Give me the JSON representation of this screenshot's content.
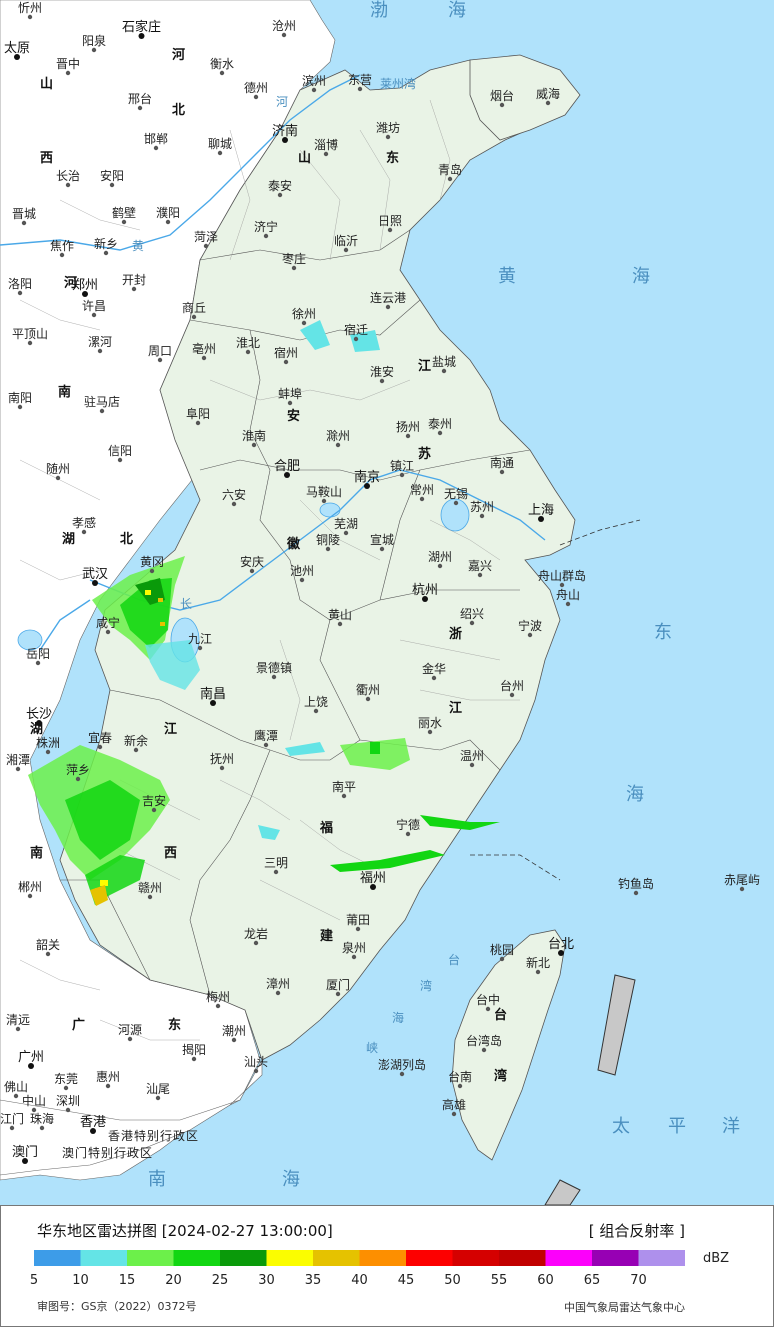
{
  "map": {
    "colors": {
      "sea": "#b0e2fb",
      "land_in": "#e9f3e6",
      "land_out": "#ffffff",
      "border": "#555555",
      "river": "#4aa8e8"
    },
    "provinces": [
      {
        "id": "shandong-1",
        "text": "山"
      },
      {
        "id": "shandong-2",
        "text": "东"
      },
      {
        "id": "jiangsu-1",
        "text": "江"
      },
      {
        "id": "jiangsu-2",
        "text": "苏"
      },
      {
        "id": "anhui-1",
        "text": "安"
      },
      {
        "id": "anhui-2",
        "text": "徽"
      },
      {
        "id": "zhejiang-1",
        "text": "浙"
      },
      {
        "id": "zhejiang-2",
        "text": "江"
      },
      {
        "id": "jiangxi-1",
        "text": "江"
      },
      {
        "id": "jiangxi-2",
        "text": "西"
      },
      {
        "id": "fujian-1",
        "text": "福"
      },
      {
        "id": "fujian-2",
        "text": "建"
      },
      {
        "id": "taiwan-1",
        "text": "台"
      },
      {
        "id": "taiwan-2",
        "text": "湾"
      },
      {
        "id": "hebei-1",
        "text": "河"
      },
      {
        "id": "hebei-2",
        "text": "北"
      },
      {
        "id": "shanxi-1",
        "text": "山"
      },
      {
        "id": "shanxi-2",
        "text": "西"
      },
      {
        "id": "henan-1",
        "text": "河"
      },
      {
        "id": "henan-2",
        "text": "南"
      },
      {
        "id": "hubei-1",
        "text": "湖"
      },
      {
        "id": "hubei-2",
        "text": "北"
      },
      {
        "id": "hunan-1",
        "text": "湖"
      },
      {
        "id": "hunan-2",
        "text": "南"
      },
      {
        "id": "guangdong-1",
        "text": "广"
      },
      {
        "id": "guangdong-2",
        "text": "东"
      }
    ],
    "seas": [
      {
        "id": "bohai-1",
        "text": "渤"
      },
      {
        "id": "bohai-2",
        "text": "海"
      },
      {
        "id": "laizhou",
        "text": "莱州湾"
      },
      {
        "id": "huanghai-1",
        "text": "黄"
      },
      {
        "id": "huanghai-2",
        "text": "海"
      },
      {
        "id": "donghai-1",
        "text": "东"
      },
      {
        "id": "donghai-2",
        "text": "海"
      },
      {
        "id": "nanhai-1",
        "text": "南"
      },
      {
        "id": "nanhai-2",
        "text": "海"
      },
      {
        "id": "taiping-1",
        "text": "太"
      },
      {
        "id": "taiping-2",
        "text": "平"
      },
      {
        "id": "taiping-3",
        "text": "洋"
      },
      {
        "id": "huanghe-1",
        "text": "河"
      },
      {
        "id": "huanghe-2",
        "text": "黄"
      },
      {
        "id": "changjiang",
        "text": "长"
      },
      {
        "id": "strait-1",
        "text": "台"
      },
      {
        "id": "strait-2",
        "text": "湾"
      },
      {
        "id": "strait-3",
        "text": "海"
      },
      {
        "id": "strait-4",
        "text": "峡"
      }
    ],
    "capitals": [
      {
        "id": "taiyuan",
        "text": "太原"
      },
      {
        "id": "shijiazhuang",
        "text": "石家庄"
      },
      {
        "id": "jinan",
        "text": "济南"
      },
      {
        "id": "zhengzhou",
        "text": "郑州"
      },
      {
        "id": "hefei",
        "text": "合肥"
      },
      {
        "id": "nanjing",
        "text": "南京"
      },
      {
        "id": "shanghai",
        "text": "上海"
      },
      {
        "id": "hangzhou",
        "text": "杭州"
      },
      {
        "id": "wuhan",
        "text": "武汉"
      },
      {
        "id": "nanchang",
        "text": "南昌"
      },
      {
        "id": "changsha",
        "text": "长沙"
      },
      {
        "id": "fuzhou",
        "text": "福州"
      },
      {
        "id": "taibei",
        "text": "台北"
      },
      {
        "id": "guangzhou",
        "text": "广州"
      },
      {
        "id": "xianggang",
        "text": "香港"
      },
      {
        "id": "aomen",
        "text": "澳门"
      }
    ],
    "cities": [
      {
        "id": "xinzhou",
        "text": "忻州"
      },
      {
        "id": "cangzhou",
        "text": "沧州"
      },
      {
        "id": "yangquan",
        "text": "阳泉"
      },
      {
        "id": "jinzhong",
        "text": "晋中"
      },
      {
        "id": "hengshui",
        "text": "衡水"
      },
      {
        "id": "dezhou",
        "text": "德州"
      },
      {
        "id": "binzhou",
        "text": "滨州"
      },
      {
        "id": "dongying",
        "text": "东营"
      },
      {
        "id": "yantai",
        "text": "烟台"
      },
      {
        "id": "weihai",
        "text": "威海"
      },
      {
        "id": "xingtai",
        "text": "邢台"
      },
      {
        "id": "zibo",
        "text": "淄博"
      },
      {
        "id": "weifang",
        "text": "潍坊"
      },
      {
        "id": "handan",
        "text": "邯郸"
      },
      {
        "id": "liaocheng",
        "text": "聊城"
      },
      {
        "id": "qingdao",
        "text": "青岛"
      },
      {
        "id": "changzhi",
        "text": "长治"
      },
      {
        "id": "anyang",
        "text": "安阳"
      },
      {
        "id": "taian",
        "text": "泰安"
      },
      {
        "id": "jincheng",
        "text": "晋城"
      },
      {
        "id": "hebi",
        "text": "鹤壁"
      },
      {
        "id": "puyang",
        "text": "濮阳"
      },
      {
        "id": "rizhao",
        "text": "日照"
      },
      {
        "id": "jining",
        "text": "济宁"
      },
      {
        "id": "heze",
        "text": "菏泽"
      },
      {
        "id": "linyi",
        "text": "临沂"
      },
      {
        "id": "jiaozuo",
        "text": "焦作"
      },
      {
        "id": "xinxiang",
        "text": "新乡"
      },
      {
        "id": "zaozhuang",
        "text": "枣庄"
      },
      {
        "id": "kaifeng",
        "text": "开封"
      },
      {
        "id": "luoyang",
        "text": "洛阳"
      },
      {
        "id": "lianyungang",
        "text": "连云港"
      },
      {
        "id": "xuchang",
        "text": "许昌"
      },
      {
        "id": "shangqiu",
        "text": "商丘"
      },
      {
        "id": "xuzhou",
        "text": "徐州"
      },
      {
        "id": "suqian",
        "text": "宿迁"
      },
      {
        "id": "pingdingshan",
        "text": "平顶山"
      },
      {
        "id": "luohe",
        "text": "漯河"
      },
      {
        "id": "zhoukou",
        "text": "周口"
      },
      {
        "id": "bozhou",
        "text": "亳州"
      },
      {
        "id": "huaibei",
        "text": "淮北"
      },
      {
        "id": "suzhou-ah",
        "text": "宿州"
      },
      {
        "id": "yancheng",
        "text": "盐城"
      },
      {
        "id": "huaian",
        "text": "淮安"
      },
      {
        "id": "nanyang",
        "text": "南阳"
      },
      {
        "id": "zhumadian",
        "text": "驻马店"
      },
      {
        "id": "bengbu",
        "text": "蚌埠"
      },
      {
        "id": "fuyang",
        "text": "阜阳"
      },
      {
        "id": "yangzhou",
        "text": "扬州"
      },
      {
        "id": "taizhou-js",
        "text": "泰州"
      },
      {
        "id": "huainan",
        "text": "淮南"
      },
      {
        "id": "chuzhou",
        "text": "滁州"
      },
      {
        "id": "xinyang",
        "text": "信阳"
      },
      {
        "id": "nantong",
        "text": "南通"
      },
      {
        "id": "zhenjiang",
        "text": "镇江"
      },
      {
        "id": "suizhou",
        "text": "随州"
      },
      {
        "id": "maanshan",
        "text": "马鞍山"
      },
      {
        "id": "changzhou",
        "text": "常州"
      },
      {
        "id": "wuxi",
        "text": "无锡"
      },
      {
        "id": "luan",
        "text": "六安"
      },
      {
        "id": "suzhou-js",
        "text": "苏州"
      },
      {
        "id": "xiaogan",
        "text": "孝感"
      },
      {
        "id": "wuhu",
        "text": "芜湖"
      },
      {
        "id": "tongling",
        "text": "铜陵"
      },
      {
        "id": "xuancheng",
        "text": "宣城"
      },
      {
        "id": "huanggang",
        "text": "黄冈"
      },
      {
        "id": "huzhou",
        "text": "湖州"
      },
      {
        "id": "anqing",
        "text": "安庆"
      },
      {
        "id": "chizhou",
        "text": "池州"
      },
      {
        "id": "jiaxing",
        "text": "嘉兴"
      },
      {
        "id": "zhoushan-qd",
        "text": "舟山群岛"
      },
      {
        "id": "zhoushan",
        "text": "舟山"
      },
      {
        "id": "shaoxing",
        "text": "绍兴"
      },
      {
        "id": "huangshan",
        "text": "黄山"
      },
      {
        "id": "xianning",
        "text": "咸宁"
      },
      {
        "id": "jiujiang",
        "text": "九江"
      },
      {
        "id": "ningbo",
        "text": "宁波"
      },
      {
        "id": "yueyang",
        "text": "岳阳"
      },
      {
        "id": "jingdezhen",
        "text": "景德镇"
      },
      {
        "id": "jinhua",
        "text": "金华"
      },
      {
        "id": "quzhou",
        "text": "衢州"
      },
      {
        "id": "taizhou-zj",
        "text": "台州"
      },
      {
        "id": "shangrao",
        "text": "上饶"
      },
      {
        "id": "lishui",
        "text": "丽水"
      },
      {
        "id": "yichun",
        "text": "宜春"
      },
      {
        "id": "xinyu",
        "text": "新余"
      },
      {
        "id": "yingtan",
        "text": "鹰潭"
      },
      {
        "id": "zhuzhou",
        "text": "株洲"
      },
      {
        "id": "xiangtan",
        "text": "湘潭"
      },
      {
        "id": "wenzhou",
        "text": "温州"
      },
      {
        "id": "pingxiang",
        "text": "萍乡"
      },
      {
        "id": "fuzhou-jx",
        "text": "抚州"
      },
      {
        "id": "nanping",
        "text": "南平"
      },
      {
        "id": "jian",
        "text": "吉安"
      },
      {
        "id": "ningde",
        "text": "宁德"
      },
      {
        "id": "sanming",
        "text": "三明"
      },
      {
        "id": "chenzhou",
        "text": "郴州"
      },
      {
        "id": "ganzhou",
        "text": "赣州"
      },
      {
        "id": "diaoyu",
        "text": "钓鱼岛"
      },
      {
        "id": "chiwei",
        "text": "赤尾屿"
      },
      {
        "id": "putian",
        "text": "莆田"
      },
      {
        "id": "longyan",
        "text": "龙岩"
      },
      {
        "id": "shaoguan",
        "text": "韶关"
      },
      {
        "id": "quanzhou",
        "text": "泉州"
      },
      {
        "id": "taoyuan",
        "text": "桃园"
      },
      {
        "id": "xinbei",
        "text": "新北"
      },
      {
        "id": "zhangzhou",
        "text": "漳州"
      },
      {
        "id": "xiamen",
        "text": "厦门"
      },
      {
        "id": "meizhou",
        "text": "梅州"
      },
      {
        "id": "taizhong",
        "text": "台中"
      },
      {
        "id": "qingyuan",
        "text": "清远"
      },
      {
        "id": "heyuan",
        "text": "河源"
      },
      {
        "id": "chaozhou",
        "text": "潮州"
      },
      {
        "id": "jieyang",
        "text": "揭阳"
      },
      {
        "id": "shantou",
        "text": "汕头"
      },
      {
        "id": "taiwandao",
        "text": "台湾岛"
      },
      {
        "id": "penghu",
        "text": "澎湖列岛"
      },
      {
        "id": "dongguan",
        "text": "东莞"
      },
      {
        "id": "huizhou",
        "text": "惠州"
      },
      {
        "id": "tainan",
        "text": "台南"
      },
      {
        "id": "foshan",
        "text": "佛山"
      },
      {
        "id": "shanwei",
        "text": "汕尾"
      },
      {
        "id": "zhongshan",
        "text": "中山"
      },
      {
        "id": "shenzhen",
        "text": "深圳"
      },
      {
        "id": "gaoxiong",
        "text": "高雄"
      },
      {
        "id": "jiangmen",
        "text": "江门"
      },
      {
        "id": "zhuhai",
        "text": "珠海"
      }
    ],
    "hk_label": "香港特别行政区",
    "macau_label": "澳门特别行政区"
  },
  "legend": {
    "title": "华东地区雷达拼图 [2024-02-27 13:00:00]",
    "product": "[ 组合反射率 ]",
    "unit": "dBZ",
    "colors": [
      "#3d9ce8",
      "#64e4e6",
      "#6cf04a",
      "#12d612",
      "#0a9a0a",
      "#fbfd00",
      "#e5c200",
      "#fd8f00",
      "#fd0000",
      "#d50000",
      "#c10000",
      "#fc00fb",
      "#9700b4",
      "#ae90ec"
    ],
    "ticks": [
      "5",
      "10",
      "15",
      "20",
      "25",
      "30",
      "35",
      "40",
      "45",
      "50",
      "55",
      "60",
      "65",
      "70"
    ],
    "review_no": "审图号：GS京（2022）0372号",
    "organization": "中国气象局雷达气象中心"
  }
}
